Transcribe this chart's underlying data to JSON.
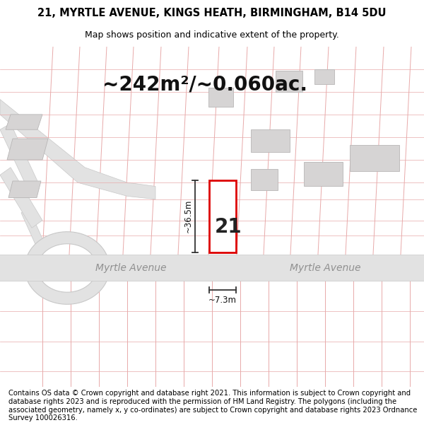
{
  "title_line1": "21, MYRTLE AVENUE, KINGS HEATH, BIRMINGHAM, B14 5DU",
  "title_line2": "Map shows position and indicative extent of the property.",
  "area_text": "~242m²/~0.060ac.",
  "label_number": "21",
  "dim_width": "~7.3m",
  "dim_height": "~36.5m",
  "street_label_left": "Myrtle Avenue",
  "street_label_right": "Myrtle Avenue",
  "footer_text": "Contains OS data © Crown copyright and database right 2021. This information is subject to Crown copyright and database rights 2023 and is reproduced with the permission of HM Land Registry. The polygons (including the associated geometry, namely x, y co-ordinates) are subject to Crown copyright and database rights 2023 Ordnance Survey 100026316.",
  "map_bg": "#f2f0ef",
  "road_fill": "#e2e2e2",
  "road_stroke": "#c8c8c8",
  "road_fill2": "#ececec",
  "plot_outline_color": "#dd0000",
  "plot_fill_color": "#ffffff",
  "grid_line_color": "#e8aaaa",
  "building_fill": "#d6d4d4",
  "building_stroke": "#b8b6b6",
  "dim_line_color": "#333333",
  "title_fontsize": 10.5,
  "subtitle_fontsize": 9,
  "area_fontsize": 20,
  "label_fontsize": 20,
  "dim_fontsize": 8.5,
  "street_fontsize": 10,
  "footer_fontsize": 7.2
}
